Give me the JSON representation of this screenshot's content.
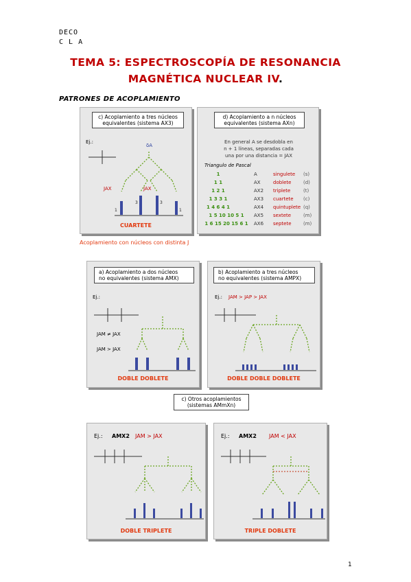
{
  "header": {
    "line1": "DECO",
    "line2": "C L A"
  },
  "title": {
    "line1": "TEMA 5: ESPECTROSCOPÍA DE RESONANCIA",
    "line2": "MAGNÉTICA NUCLEAR IV",
    "dot": "."
  },
  "section": "PATRONES DE ACOPLAMIENTO",
  "panel_c": {
    "caption1": "c)   Acoplamiento a tres núcleos",
    "caption2": "equivalentes     (sistema AX3)",
    "ej": "Ej.:",
    "delta": "δA",
    "jax": "JAX",
    "ratio": [
      "1",
      "3",
      "3",
      "1"
    ],
    "label": "CUARTETE"
  },
  "panel_d": {
    "caption1": "d)   Acoplamiento a n núcleos",
    "caption2": "equivalentes     (sistema AXn)",
    "text1": "En general A se desdobla en",
    "text2": "n + 1 líneas, separadas cada",
    "text3": "una por una distancia = JAX",
    "pascal": "Triangulo de Pascal",
    "rows": [
      {
        "p": "1",
        "s": "A",
        "n": "singulete",
        "r": "(s)"
      },
      {
        "p": "1   1",
        "s": "AX",
        "n": "doblete",
        "r": "(d)"
      },
      {
        "p": "1  2  1",
        "s": "AX2",
        "n": "triplete",
        "r": "(t)"
      },
      {
        "p": "1  3  3  1",
        "s": "AX3",
        "n": "cuartete",
        "r": "(c)"
      },
      {
        "p": "1  4  6  4  1",
        "s": "AX4",
        "n": "quintuplete",
        "r": "(q)"
      },
      {
        "p": "1  5  10  10  5  1",
        "s": "AX5",
        "n": "sextete",
        "r": "(m)"
      },
      {
        "p": "1  6  15  20  15  6  1",
        "s": "AX6",
        "n": "septete",
        "r": "(m)"
      }
    ]
  },
  "note": "Acoplamiento con núcleos con distinta J",
  "panel_a": {
    "caption1": "a)   Acoplamiento a dos núcleos",
    "caption2": "no equivalentes  (sistema AMX)",
    "ej": "Ej.:",
    "cond1": "JAM ≠ JAX",
    "cond2": "JAM > JAX",
    "label": "DOBLE DOBLETE"
  },
  "panel_b": {
    "caption1": "b)  Acoplamiento a tres núcleos",
    "caption2": "no equivalentes  (sistema AMPX)",
    "ej": "Ej.:",
    "cond": "JAM > JAP > JAX",
    "label": "DOBLE DOBLE DOBLETE"
  },
  "others": {
    "line1": "c)   Otros acoplamientos",
    "line2": "(sistemas AMmXn)"
  },
  "panel_e": {
    "ej": "Ej.:",
    "sys": "AMX2",
    "cond": "JAM > JAX",
    "label": "DOBLE TRIPLETE"
  },
  "panel_f": {
    "ej": "Ej.:",
    "sys": "AMX2",
    "cond": "JAM < JAX",
    "label": "TRIPLE DOBLETE"
  },
  "page_number": "1"
}
